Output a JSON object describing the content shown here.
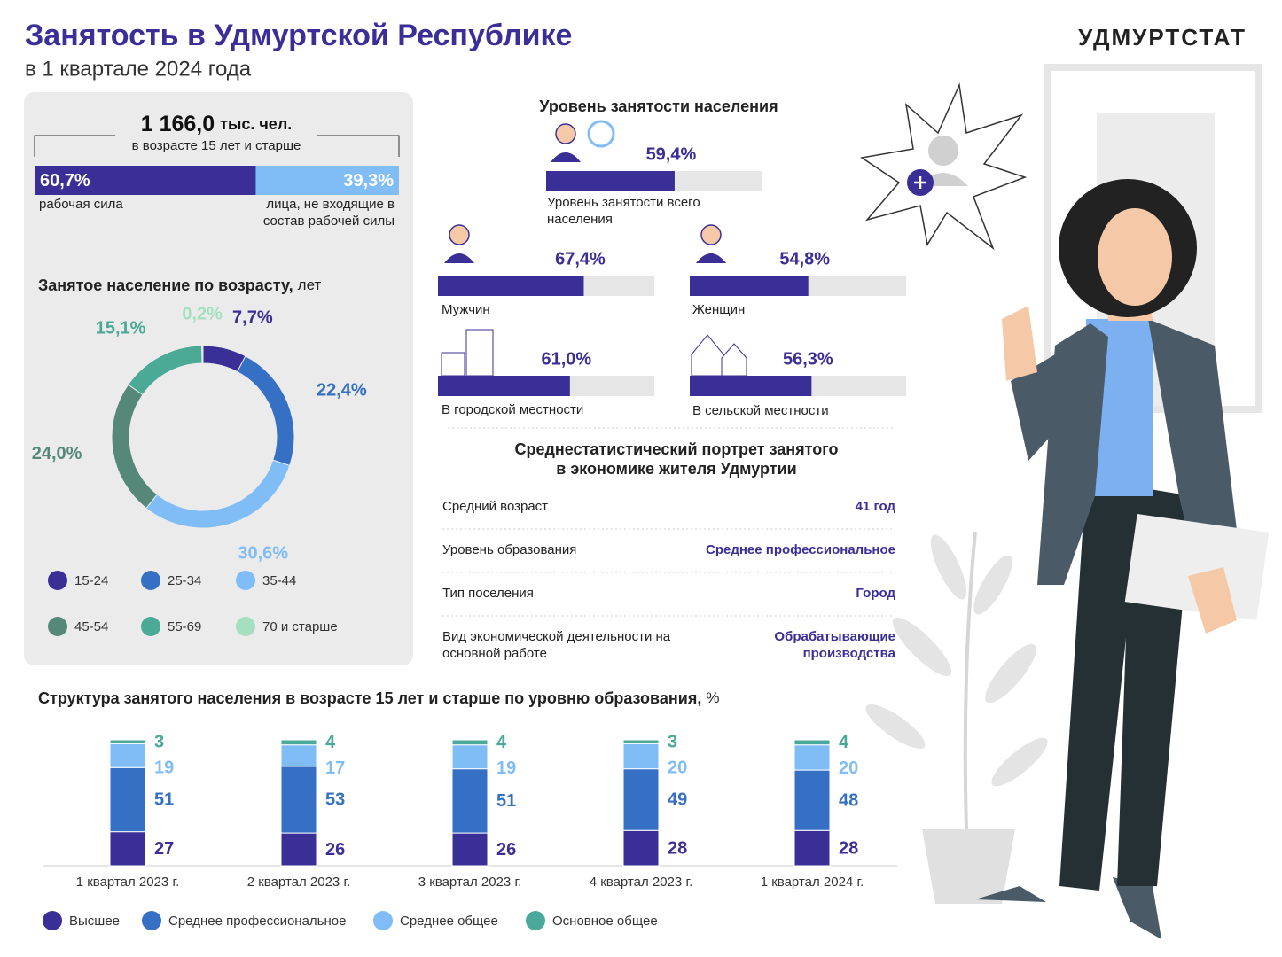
{
  "header": {
    "title": "Занятость в Удмуртской Республике",
    "subtitle": "в 1 квартале 2024 года",
    "brand": "УДМУРТСТАТ"
  },
  "chart_data": [
    {
      "type": "hbar",
      "title": "1 166,0",
      "unit": "тыс. чел.",
      "subtitle": "в возрасте 15 лет и старше",
      "xlim": [
        0,
        100
      ],
      "series": [
        {
          "name": "рабочая сила",
          "color": "#3a2f96",
          "values": [
            60.7
          ],
          "value_labels": [
            "60,7%"
          ]
        },
        {
          "name": "лица, не входящие в состав рабочей силы",
          "color": "#80bdf7",
          "values": [
            39.3
          ],
          "value_labels": [
            "39,3%"
          ]
        }
      ]
    },
    {
      "type": "pie",
      "title": "Занятое население по возрасту,",
      "unit": "лет",
      "categories": [
        "15-24",
        "25-34",
        "35-44",
        "45-54",
        "55-69",
        "70 и старше"
      ],
      "values": [
        7.7,
        22.4,
        30.6,
        24.0,
        15.1,
        0.2
      ],
      "value_labels": [
        "7,7%",
        "22,4%",
        "30,6%",
        "24,0%",
        "15,1%",
        "0,2%"
      ],
      "colors": [
        "#3a2f96",
        "#3570c4",
        "#80bdf7",
        "#56887a",
        "#4aaa95",
        "#a6dfc0"
      ]
    },
    {
      "type": "progress",
      "title": "Уровень занятости населения",
      "categories": [
        "Уровень занятости всего населения",
        "Мужчин",
        "Женщин",
        "В городской местности",
        "В сельской местности"
      ],
      "values": [
        59.4,
        67.4,
        54.8,
        61.0,
        56.3
      ],
      "value_labels": [
        "59,4%",
        "67,4%",
        "54,8%",
        "61,0%",
        "56,3%"
      ],
      "xlim": [
        0,
        100
      ],
      "color": "#3a2f96",
      "track_color": "#e6e6e6"
    },
    {
      "type": "bar",
      "title": "Структура занятого населения в возрасте 15 лет и старше по уровню образования,",
      "unit": "%",
      "categories": [
        "1 квартал 2023 г.",
        "2 квартал 2023 г.",
        "3 квартал 2023 г.",
        "4 квартал 2023 г.",
        "1 квартал 2024 г."
      ],
      "ylim": [
        0,
        100
      ],
      "stacked": true,
      "series": [
        {
          "name": "Высшее",
          "color": "#3a2f96",
          "values": [
            27,
            26,
            26,
            28,
            28
          ]
        },
        {
          "name": "Среднее профессиональное",
          "color": "#3570c4",
          "values": [
            51,
            53,
            51,
            49,
            48
          ]
        },
        {
          "name": "Среднее общее",
          "color": "#80bdf7",
          "values": [
            19,
            17,
            19,
            20,
            20
          ]
        },
        {
          "name": "Основное общее",
          "color": "#4aa99a",
          "values": [
            3,
            4,
            4,
            3,
            4
          ]
        }
      ]
    }
  ],
  "portrait": {
    "title": [
      "Среднестатистический портрет занятого",
      "в экономике жителя Удмуртии"
    ],
    "rows": [
      {
        "label": "Средний возраст",
        "value": "41 год"
      },
      {
        "label": "Уровень образования",
        "value": "Среднее профессиональное"
      },
      {
        "label": "Тип поселения",
        "value": "Город"
      },
      {
        "label": "Вид экономической деятельности на основной работе",
        "value": "Обрабатывающие производства"
      }
    ]
  }
}
